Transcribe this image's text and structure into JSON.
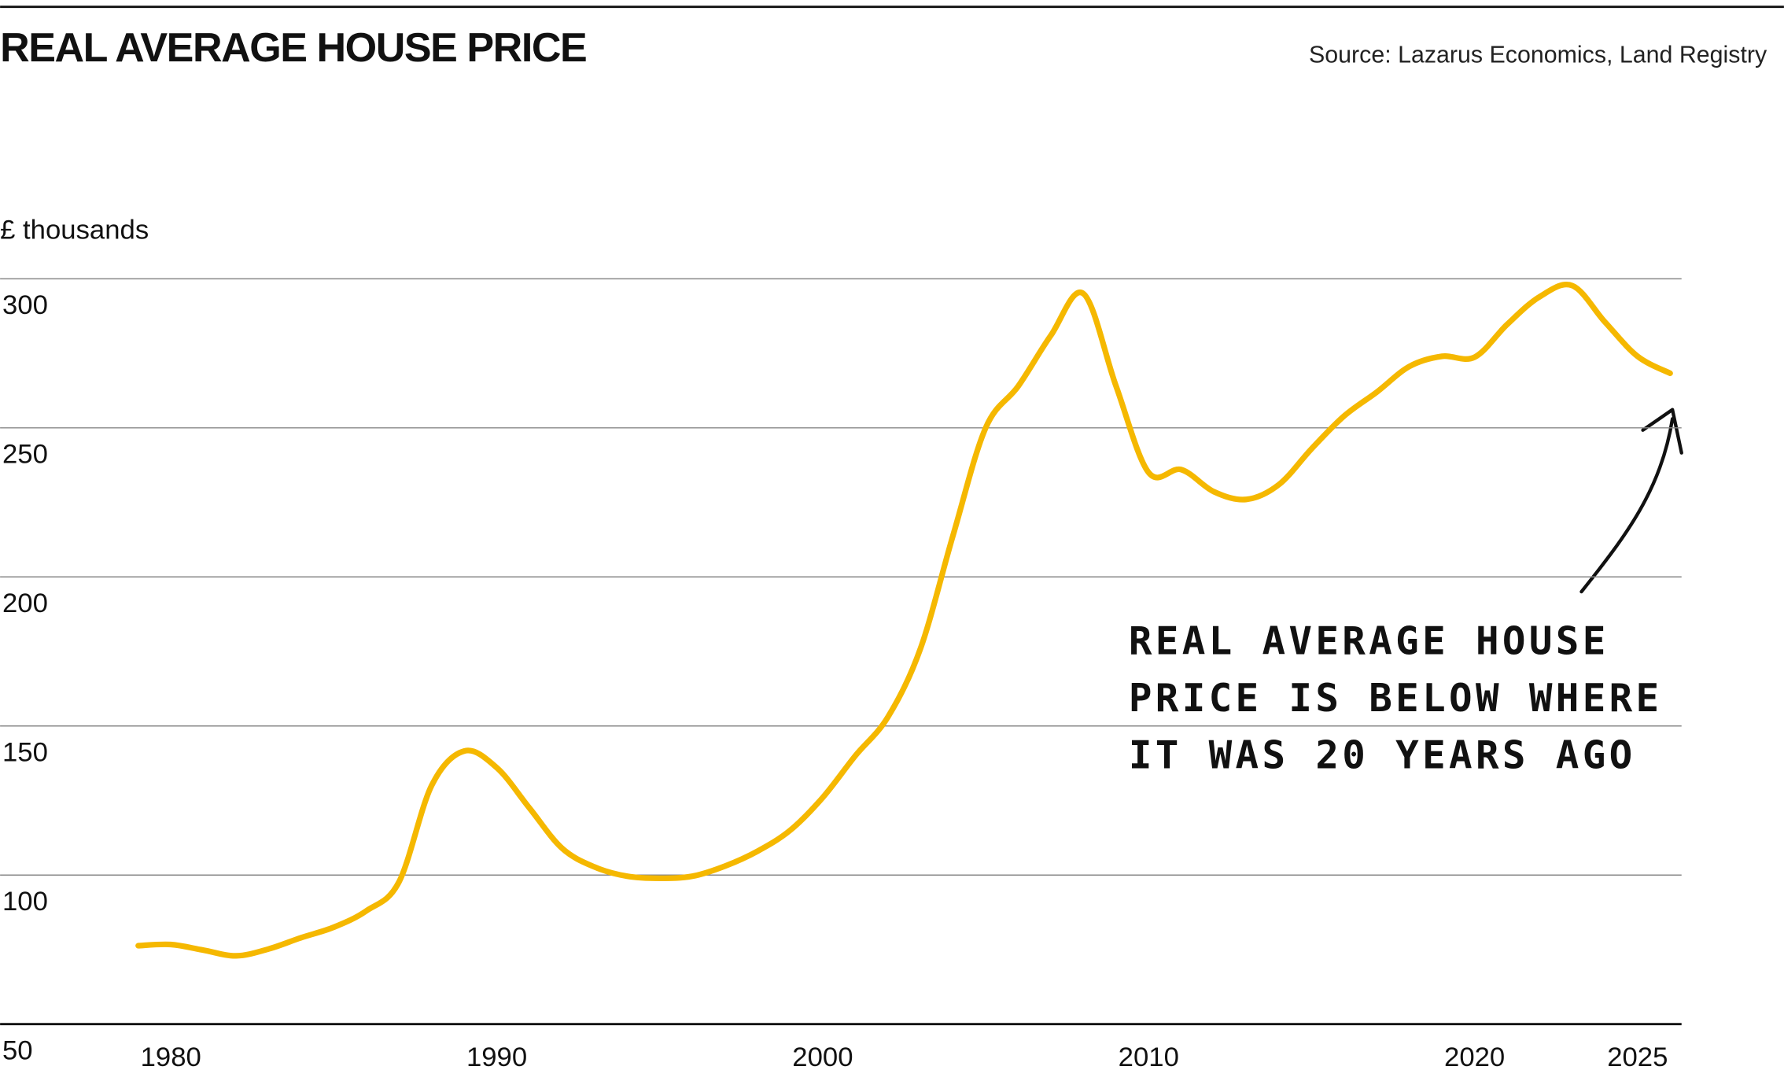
{
  "chart_data": {
    "type": "line",
    "title": "REAL AVERAGE HOUSE PRICE",
    "source": "Source: Lazarus Economics, Land Registry",
    "y_label": "£ thousands",
    "annotation": [
      "REAL AVERAGE HOUSE",
      "PRICE IS BELOW WHERE",
      "IT WAS 20 YEARS AGO"
    ],
    "x": [
      1979,
      1980,
      1981,
      1982,
      1983,
      1984,
      1985,
      1986,
      1987,
      1988,
      1989,
      1990,
      1991,
      1992,
      1993,
      1994,
      1995,
      1996,
      1997,
      1998,
      1999,
      2000,
      2001,
      2002,
      2003,
      2004,
      2005,
      2006,
      2007,
      2008,
      2009,
      2010,
      2011,
      2012,
      2013,
      2014,
      2015,
      2016,
      2017,
      2018,
      2019,
      2020,
      2021,
      2022,
      2023,
      2024,
      2025,
      2026
    ],
    "series": [
      {
        "name": "Real average house price",
        "color": "#f5b800",
        "values": [
          76.3,
          76.7,
          74.8,
          72.9,
          75.2,
          79,
          82.5,
          88,
          97.7,
          130,
          141.6,
          136,
          122.5,
          109,
          102.7,
          99.6,
          98.9,
          99.6,
          103,
          108,
          115,
          126,
          140,
          153,
          176,
          214,
          250,
          264,
          281,
          295,
          264,
          235,
          236,
          228.6,
          226,
          231,
          243,
          254,
          262,
          270.6,
          274,
          273.7,
          284.7,
          294,
          297.7,
          285.5,
          274,
          268.3
        ]
      }
    ],
    "xlim": [
      1974.76,
      2026.35
    ],
    "xticks": [
      1980,
      1990,
      2000,
      2010,
      2020,
      2025
    ],
    "ylim": [
      50,
      300
    ],
    "yticks": [
      50,
      100,
      150,
      200,
      250,
      300
    ],
    "grid": true
  }
}
